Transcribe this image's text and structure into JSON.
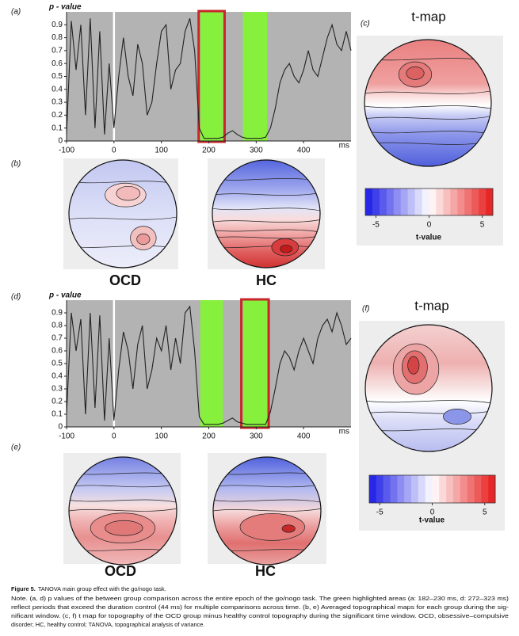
{
  "chart_data": [
    {
      "type": "line",
      "ylabel": "p - value",
      "xunit": "ms",
      "x": [
        -100,
        -90,
        -80,
        -70,
        -60,
        -50,
        -40,
        -30,
        -20,
        -10,
        0,
        10,
        20,
        30,
        40,
        50,
        60,
        70,
        80,
        90,
        100,
        110,
        120,
        130,
        140,
        150,
        160,
        170,
        180,
        190,
        200,
        210,
        220,
        230,
        240,
        250,
        260,
        270,
        280,
        290,
        300,
        310,
        320,
        330,
        340,
        350,
        360,
        370,
        380,
        390,
        400,
        410,
        420,
        430,
        440,
        450,
        460,
        470,
        480,
        490,
        500
      ],
      "values": [
        0.05,
        0.93,
        0.55,
        0.9,
        0.2,
        0.95,
        0.1,
        0.85,
        0.05,
        0.6,
        0.1,
        0.5,
        0.8,
        0.5,
        0.35,
        0.75,
        0.6,
        0.2,
        0.3,
        0.6,
        0.85,
        0.9,
        0.4,
        0.55,
        0.6,
        0.85,
        0.95,
        0.7,
        0.1,
        0.02,
        0.02,
        0.02,
        0.02,
        0.03,
        0.06,
        0.08,
        0.05,
        0.03,
        0.02,
        0.02,
        0.02,
        0.02,
        0.03,
        0.1,
        0.25,
        0.45,
        0.55,
        0.6,
        0.5,
        0.45,
        0.55,
        0.7,
        0.55,
        0.5,
        0.65,
        0.8,
        0.9,
        0.75,
        0.7,
        0.85,
        0.7
      ],
      "color": "#222222",
      "xlim": [
        -100,
        500
      ],
      "xticks": [
        -100,
        0,
        100,
        200,
        300,
        400
      ],
      "ylim": [
        0,
        1
      ],
      "yticks": [
        0,
        0.1,
        0.2,
        0.3,
        0.4,
        0.5,
        0.6,
        0.7,
        0.8,
        0.9
      ],
      "highlights": [
        [
          182,
          230
        ],
        [
          272,
          323
        ]
      ],
      "highlight_color": "#86f03c",
      "selected_highlight": 0
    },
    {
      "type": "colorbar",
      "title": "t-map",
      "xlabel": "t-value",
      "xlim": [
        -6,
        6
      ],
      "xticks": [
        -5,
        0,
        5
      ],
      "colors": [
        "#1a1ae6",
        "#ffffff",
        "#e61a1a"
      ]
    },
    {
      "type": "line",
      "ylabel": "p - value",
      "xunit": "ms",
      "x": [
        -100,
        -90,
        -80,
        -70,
        -60,
        -50,
        -40,
        -30,
        -20,
        -10,
        0,
        10,
        20,
        30,
        40,
        50,
        60,
        70,
        80,
        90,
        100,
        110,
        120,
        130,
        140,
        150,
        160,
        170,
        180,
        190,
        200,
        210,
        220,
        230,
        240,
        250,
        260,
        270,
        280,
        290,
        300,
        310,
        320,
        330,
        340,
        350,
        360,
        370,
        380,
        390,
        400,
        410,
        420,
        430,
        440,
        450,
        460,
        470,
        480,
        490,
        500
      ],
      "values": [
        0.1,
        0.9,
        0.6,
        0.85,
        0.1,
        0.9,
        0.15,
        0.88,
        0.05,
        0.7,
        0.05,
        0.45,
        0.75,
        0.6,
        0.3,
        0.65,
        0.8,
        0.3,
        0.45,
        0.7,
        0.6,
        0.8,
        0.45,
        0.7,
        0.5,
        0.9,
        0.95,
        0.6,
        0.08,
        0.02,
        0.02,
        0.02,
        0.02,
        0.03,
        0.05,
        0.07,
        0.04,
        0.03,
        0.02,
        0.02,
        0.02,
        0.02,
        0.02,
        0.12,
        0.3,
        0.5,
        0.6,
        0.55,
        0.45,
        0.6,
        0.7,
        0.6,
        0.5,
        0.7,
        0.8,
        0.85,
        0.75,
        0.9,
        0.8,
        0.65,
        0.7
      ],
      "color": "#222222",
      "xlim": [
        -100,
        500
      ],
      "xticks": [
        -100,
        0,
        100,
        200,
        300,
        400
      ],
      "ylim": [
        0,
        1
      ],
      "yticks": [
        0,
        0.1,
        0.2,
        0.3,
        0.4,
        0.5,
        0.6,
        0.7,
        0.8,
        0.9
      ],
      "highlights": [
        [
          182,
          230
        ],
        [
          272,
          323
        ]
      ],
      "highlight_color": "#86f03c",
      "selected_highlight": 1
    },
    {
      "type": "colorbar",
      "title": "t-map",
      "xlabel": "t-value",
      "xlim": [
        -6,
        6
      ],
      "xticks": [
        -5,
        0,
        5
      ],
      "colors": [
        "#1a1ae6",
        "#ffffff",
        "#e61a1a"
      ]
    }
  ],
  "figure": {
    "panel_labels": [
      "(a)",
      "(b)",
      "(c)",
      "(d)",
      "(e)",
      "(f)"
    ],
    "group_labels": [
      "OCD",
      "HC",
      "OCD",
      "HC"
    ],
    "caption": {
      "title": "Figure 5.",
      "heading": "TANOVA main group effect with the go/nogo task.",
      "note_lines": [
        "Note. (a, d) p values of the between group comparison across the entire epoch of the go/nogo task. The green highlighted areas (a: 182–230 ms, d: 272–323 ms)",
        "reflect periods that exceed the duration control (44 ms) for multiple comparisons across time. (b, e) Averaged topographical maps for each group during the sig-",
        "nificant window. (c, f) t map for topography of the OCD group minus healthy control topography during the significant time window. OCD, obsessive–compulsive",
        "disorder; HC, healthy control; TANOVA, topographical analysis of variance."
      ]
    }
  }
}
